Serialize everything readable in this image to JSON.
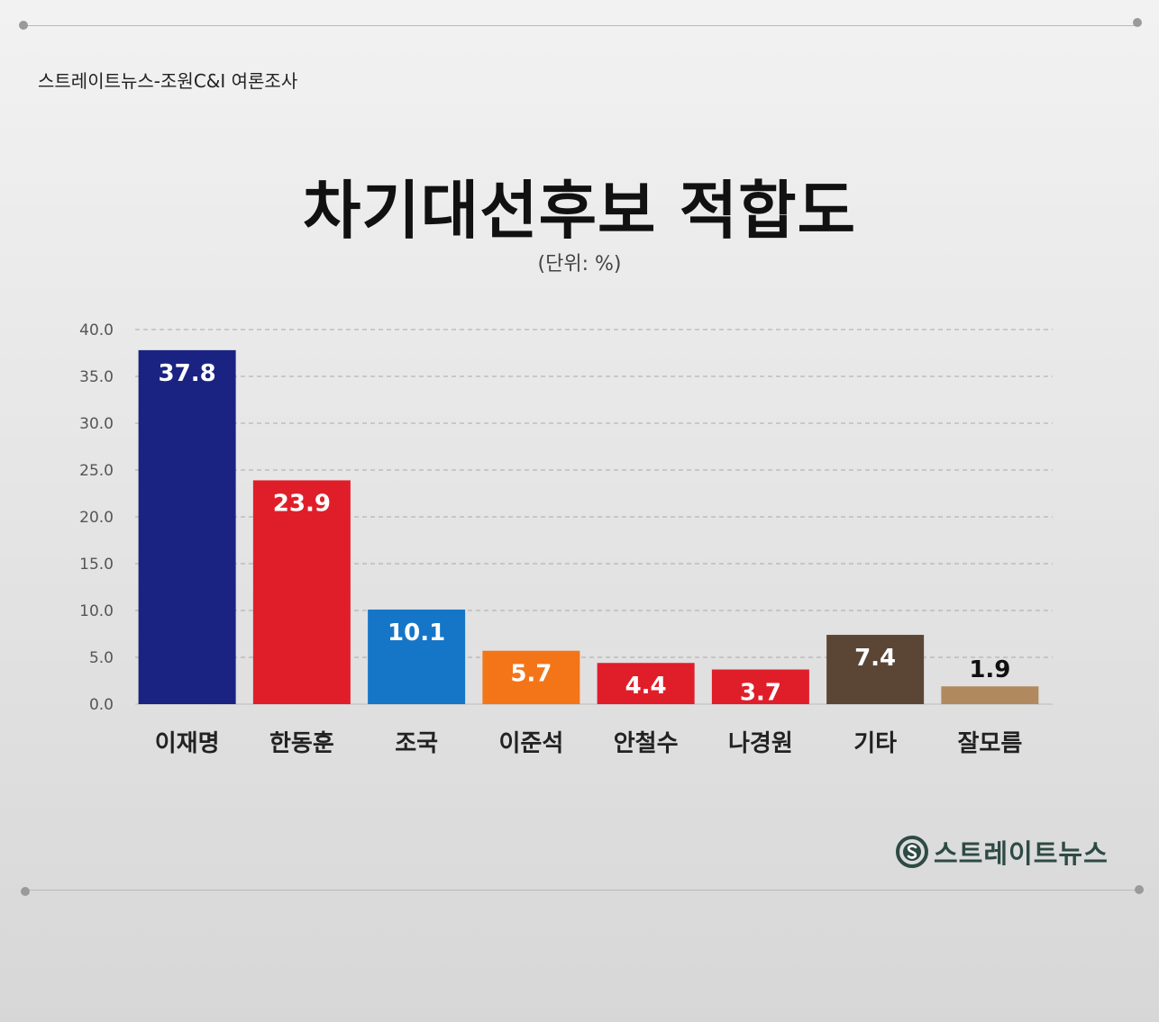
{
  "header": {
    "source": "스트레이트뉴스-조원C&I 여론조사",
    "title": "차기대선후보 적합도",
    "unit": "(단위: %)"
  },
  "brand": {
    "logo_text": "스트레이트뉴스",
    "logo_icon": "s-circle-logo-icon",
    "color": "#2e4a44"
  },
  "chart_data": {
    "type": "bar",
    "title": "차기대선후보 적합도",
    "subtitle": "(단위: %)",
    "categories": [
      "이재명",
      "한동훈",
      "조국",
      "이준석",
      "안철수",
      "나경원",
      "기타",
      "잘모름"
    ],
    "values": [
      37.8,
      23.9,
      10.1,
      5.7,
      4.4,
      3.7,
      7.4,
      1.9
    ],
    "value_labels": [
      "37.8",
      "23.9",
      "10.1",
      "5.7",
      "4.4",
      "3.7",
      "7.4",
      "1.9"
    ],
    "colors": [
      "#1a2382",
      "#e01e2a",
      "#1576c8",
      "#f47418",
      "#e01e2a",
      "#e01e2a",
      "#5b4636",
      "#b08a5e"
    ],
    "ylim": [
      0,
      40
    ],
    "yticks": [
      0,
      5,
      10,
      15,
      20,
      25,
      30,
      35,
      40
    ],
    "ytick_labels": [
      "0.0",
      "5.0",
      "10.0",
      "15.0",
      "20.0",
      "25.0",
      "30.0",
      "35.0",
      "40.0"
    ],
    "grid": true,
    "legend": "none"
  }
}
